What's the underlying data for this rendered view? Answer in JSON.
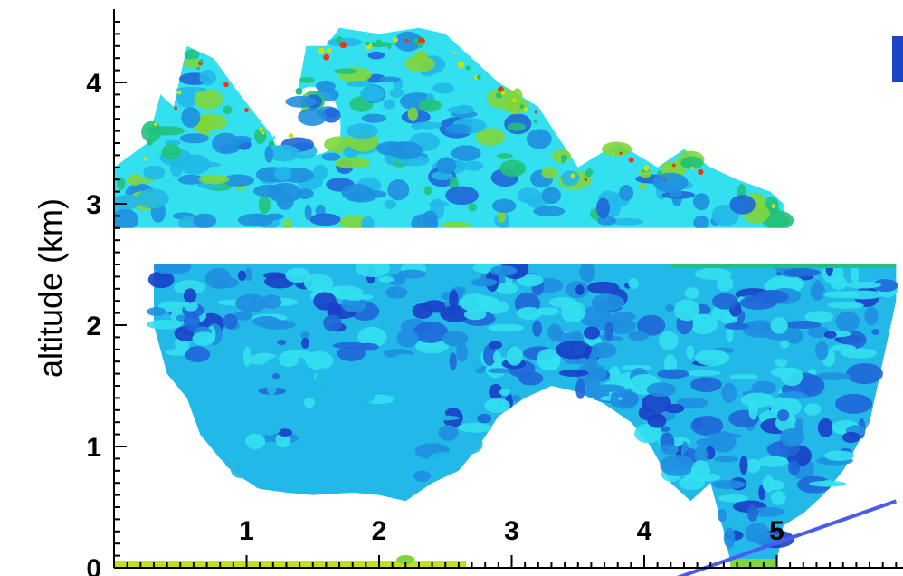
{
  "chart_data": {
    "type": "heatmap",
    "title": "",
    "xlabel": "",
    "ylabel": "altitude (km)",
    "xlim": [
      0,
      5.9
    ],
    "ylim": [
      0,
      4.5
    ],
    "x_ticks": [
      "1",
      "2",
      "3",
      "4",
      "5"
    ],
    "y_ticks": [
      "0",
      "1",
      "2",
      "3",
      "4"
    ],
    "grid": false,
    "data_gap_altitude_km": [
      2.5,
      2.8
    ],
    "colors": {
      "light_cyan": "#33e0f0",
      "cyan_blue": "#22b8e8",
      "medium_blue": "#1f8fe0",
      "blue": "#1f66d8",
      "dark_blue": "#1a3fc6",
      "green": "#22c27a",
      "light_green": "#7fd63a",
      "yellow_green": "#c4e01a",
      "red": "#e33a1a",
      "line": "#4a5cf0",
      "legend_patch": "#1c44c8"
    },
    "upper_layer_top_km": [
      {
        "x": 0.0,
        "y": 3.3
      },
      {
        "x": 0.25,
        "y": 3.5
      },
      {
        "x": 0.35,
        "y": 3.9
      },
      {
        "x": 0.45,
        "y": 3.8
      },
      {
        "x": 0.55,
        "y": 4.3
      },
      {
        "x": 0.75,
        "y": 4.2
      },
      {
        "x": 0.95,
        "y": 3.9
      },
      {
        "x": 1.2,
        "y": 3.55
      },
      {
        "x": 1.35,
        "y": 3.7
      },
      {
        "x": 1.45,
        "y": 4.3
      },
      {
        "x": 1.6,
        "y": 4.3
      },
      {
        "x": 1.7,
        "y": 4.45
      },
      {
        "x": 2.0,
        "y": 4.4
      },
      {
        "x": 2.3,
        "y": 4.45
      },
      {
        "x": 2.5,
        "y": 4.4
      },
      {
        "x": 2.7,
        "y": 4.2
      },
      {
        "x": 2.9,
        "y": 4.0
      },
      {
        "x": 3.2,
        "y": 3.8
      },
      {
        "x": 3.5,
        "y": 3.3
      },
      {
        "x": 3.8,
        "y": 3.5
      },
      {
        "x": 4.1,
        "y": 3.3
      },
      {
        "x": 4.3,
        "y": 3.45
      },
      {
        "x": 4.5,
        "y": 3.3
      },
      {
        "x": 4.7,
        "y": 3.2
      },
      {
        "x": 4.95,
        "y": 3.1
      },
      {
        "x": 5.05,
        "y": 3.0
      }
    ],
    "lower_layer_base_km": [
      {
        "x": 0.3,
        "y": 2.0
      },
      {
        "x": 0.4,
        "y": 1.6
      },
      {
        "x": 0.55,
        "y": 1.4
      },
      {
        "x": 0.65,
        "y": 1.1
      },
      {
        "x": 0.8,
        "y": 0.9
      },
      {
        "x": 0.95,
        "y": 0.75
      },
      {
        "x": 1.1,
        "y": 0.65
      },
      {
        "x": 1.3,
        "y": 0.62
      },
      {
        "x": 1.5,
        "y": 0.6
      },
      {
        "x": 1.8,
        "y": 0.62
      },
      {
        "x": 2.0,
        "y": 0.6
      },
      {
        "x": 2.2,
        "y": 0.55
      },
      {
        "x": 2.4,
        "y": 0.7
      },
      {
        "x": 2.6,
        "y": 0.8
      },
      {
        "x": 2.75,
        "y": 1.0
      },
      {
        "x": 2.9,
        "y": 1.25
      },
      {
        "x": 3.1,
        "y": 1.4
      },
      {
        "x": 3.3,
        "y": 1.5
      },
      {
        "x": 3.5,
        "y": 1.45
      },
      {
        "x": 3.7,
        "y": 1.35
      },
      {
        "x": 3.9,
        "y": 1.2
      },
      {
        "x": 4.05,
        "y": 1.0
      },
      {
        "x": 4.2,
        "y": 0.7
      },
      {
        "x": 4.35,
        "y": 0.55
      },
      {
        "x": 4.5,
        "y": 0.7
      },
      {
        "x": 4.6,
        "y": 0.3
      },
      {
        "x": 4.65,
        "y": 0.05
      },
      {
        "x": 5.0,
        "y": 0.05
      },
      {
        "x": 5.05,
        "y": 0.35
      },
      {
        "x": 5.2,
        "y": 0.45
      },
      {
        "x": 5.35,
        "y": 0.6
      },
      {
        "x": 5.5,
        "y": 0.8
      },
      {
        "x": 5.7,
        "y": 1.2
      },
      {
        "x": 5.8,
        "y": 1.7
      },
      {
        "x": 5.9,
        "y": 2.2
      }
    ],
    "surface_band_km": {
      "x_start": 0.0,
      "x_end": 2.65,
      "y_top": 0.05
    },
    "line_overlay": {
      "x": [
        4.2,
        5.9
      ],
      "y": [
        -0.1,
        0.55
      ]
    }
  }
}
